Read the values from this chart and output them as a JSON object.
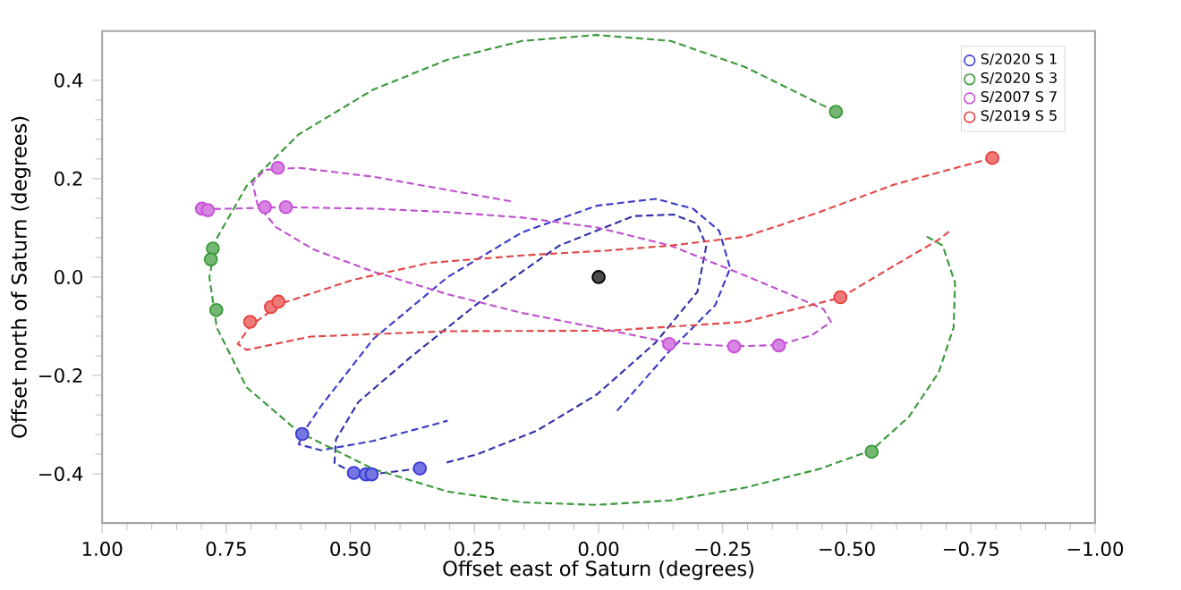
{
  "chart_data": {
    "type": "scatter",
    "xlabel": "Offset east of Saturn (degrees)",
    "ylabel": "Offset north of Saturn (degrees)",
    "xlim": [
      1.0,
      -1.0
    ],
    "ylim": [
      -0.5,
      0.5
    ],
    "xticks": [
      {
        "value": 1.0,
        "label": "1.00"
      },
      {
        "value": 0.75,
        "label": "0.75"
      },
      {
        "value": 0.5,
        "label": "0.50"
      },
      {
        "value": 0.25,
        "label": "0.25"
      },
      {
        "value": 0.0,
        "label": "0.00"
      },
      {
        "value": -0.25,
        "label": "−0.25"
      },
      {
        "value": -0.5,
        "label": "−0.50"
      },
      {
        "value": -0.75,
        "label": "−0.75"
      },
      {
        "value": -1.0,
        "label": "−1.00"
      }
    ],
    "yticks": [
      {
        "value": -0.4,
        "label": "−0.4"
      },
      {
        "value": -0.2,
        "label": "−0.2"
      },
      {
        "value": 0.0,
        "label": "0.0"
      },
      {
        "value": 0.2,
        "label": "0.2"
      },
      {
        "value": 0.4,
        "label": "0.4"
      }
    ],
    "legend": "top right",
    "grid": false,
    "series": [
      {
        "name": "S/2020 S 1",
        "type": "scatter",
        "marker": "circle",
        "color": "#3b3bd6",
        "x": [
          0.597,
          0.493,
          0.469,
          0.457,
          0.36
        ],
        "values": [
          -0.319,
          -0.398,
          -0.401,
          -0.401,
          -0.389
        ]
      },
      {
        "name": "S/2020 S 3",
        "type": "scatter",
        "marker": "circle",
        "color": "#3a9a3a",
        "x": [
          -0.478,
          0.777,
          0.781,
          0.77,
          -0.55
        ],
        "values": [
          0.336,
          0.058,
          0.036,
          -0.067,
          -0.355
        ]
      },
      {
        "name": "S/2007 S 7",
        "type": "scatter",
        "marker": "circle",
        "color": "#c74fd6",
        "x": [
          0.646,
          0.799,
          0.787,
          0.672,
          0.63,
          -0.142,
          -0.273,
          -0.363
        ],
        "values": [
          0.222,
          0.139,
          0.136,
          0.142,
          0.142,
          -0.136,
          -0.141,
          -0.139
        ]
      },
      {
        "name": "S/2019 S 5",
        "type": "scatter",
        "marker": "circle",
        "color": "#e64040",
        "x": [
          -0.793,
          0.702,
          0.66,
          0.645,
          -0.487
        ],
        "values": [
          0.242,
          -0.091,
          -0.061,
          -0.05,
          -0.041
        ]
      },
      {
        "type": "line",
        "line_style": "dashed",
        "color": "#3b3bc8",
        "x": [
          -0.037,
          -0.145,
          -0.235,
          -0.265,
          -0.243,
          -0.19,
          -0.115,
          0.004,
          0.154,
          0.304,
          0.454,
          0.559,
          0.597,
          0.604,
          0.559,
          0.454,
          0.304
        ],
        "values": [
          -0.272,
          -0.148,
          -0.057,
          0.018,
          0.094,
          0.139,
          0.159,
          0.145,
          0.091,
          0.0,
          -0.126,
          -0.262,
          -0.319,
          -0.34,
          -0.352,
          -0.333,
          -0.292
        ]
      },
      {
        "type": "line",
        "line_style": "dashed",
        "color": "#3030a8",
        "x": [
          0.36,
          0.457,
          0.493,
          0.532,
          0.529,
          0.484,
          0.379,
          0.229,
          0.079,
          -0.07,
          -0.151,
          -0.198,
          -0.217,
          -0.199,
          -0.115,
          0.004,
          0.124,
          0.244,
          0.31
        ],
        "values": [
          -0.389,
          -0.401,
          -0.398,
          -0.378,
          -0.33,
          -0.254,
          -0.163,
          -0.042,
          0.064,
          0.124,
          0.127,
          0.109,
          0.064,
          -0.03,
          -0.133,
          -0.239,
          -0.312,
          -0.36,
          -0.378
        ]
      },
      {
        "type": "line",
        "line_style": "dashed",
        "color": "#3a9a3a",
        "x": [
          -0.478,
          -0.295,
          -0.145,
          0.004,
          0.154,
          0.304,
          0.454,
          0.604,
          0.709,
          0.769,
          0.784,
          0.769,
          0.709,
          0.604,
          0.454,
          0.304,
          0.154,
          0.004,
          -0.145,
          -0.295,
          -0.445,
          -0.55,
          -0.625,
          -0.685,
          -0.715,
          -0.718,
          -0.693,
          -0.655
        ],
        "values": [
          0.336,
          0.427,
          0.48,
          0.492,
          0.48,
          0.442,
          0.381,
          0.29,
          0.185,
          0.079,
          0.0,
          -0.103,
          -0.224,
          -0.315,
          -0.39,
          -0.436,
          -0.458,
          -0.463,
          -0.454,
          -0.428,
          -0.39,
          -0.352,
          -0.284,
          -0.194,
          -0.103,
          -0.012,
          0.064,
          0.086
        ]
      },
      {
        "type": "line",
        "line_style": "dashed",
        "color": "#c050d0",
        "x": [
          0.177,
          0.304,
          0.454,
          0.604,
          0.672,
          0.697,
          0.687,
          0.649,
          0.574,
          0.454,
          0.304,
          0.154,
          0.004,
          -0.142,
          -0.273,
          -0.363,
          -0.43,
          -0.468,
          -0.453,
          -0.385,
          -0.295,
          -0.145,
          0.004,
          0.154,
          0.304,
          0.454,
          0.63,
          0.787
        ],
        "values": [
          0.154,
          0.177,
          0.204,
          0.222,
          0.218,
          0.192,
          0.147,
          0.101,
          0.056,
          0.011,
          -0.035,
          -0.073,
          -0.103,
          -0.133,
          -0.141,
          -0.138,
          -0.118,
          -0.091,
          -0.065,
          -0.035,
          0.003,
          0.064,
          0.101,
          0.121,
          0.132,
          0.139,
          0.142,
          0.138
        ]
      },
      {
        "type": "line",
        "line_style": "dashed",
        "color": "#e04848",
        "x": [
          -0.793,
          -0.595,
          -0.445,
          -0.295,
          -0.145,
          -0.019,
          0.154,
          0.34,
          0.496,
          0.64,
          0.7,
          0.727,
          0.709,
          0.58,
          0.304,
          -0.019,
          -0.295,
          -0.487,
          -0.595,
          -0.685,
          -0.708
        ],
        "values": [
          0.242,
          0.188,
          0.132,
          0.082,
          0.064,
          0.054,
          0.044,
          0.029,
          -0.006,
          -0.054,
          -0.098,
          -0.136,
          -0.148,
          -0.121,
          -0.11,
          -0.109,
          -0.091,
          -0.042,
          0.023,
          0.076,
          0.094
        ]
      },
      {
        "type": "scatter",
        "marker": "circle",
        "color": "#000000",
        "x": [
          0.0
        ],
        "values": [
          0.0
        ]
      }
    ]
  }
}
